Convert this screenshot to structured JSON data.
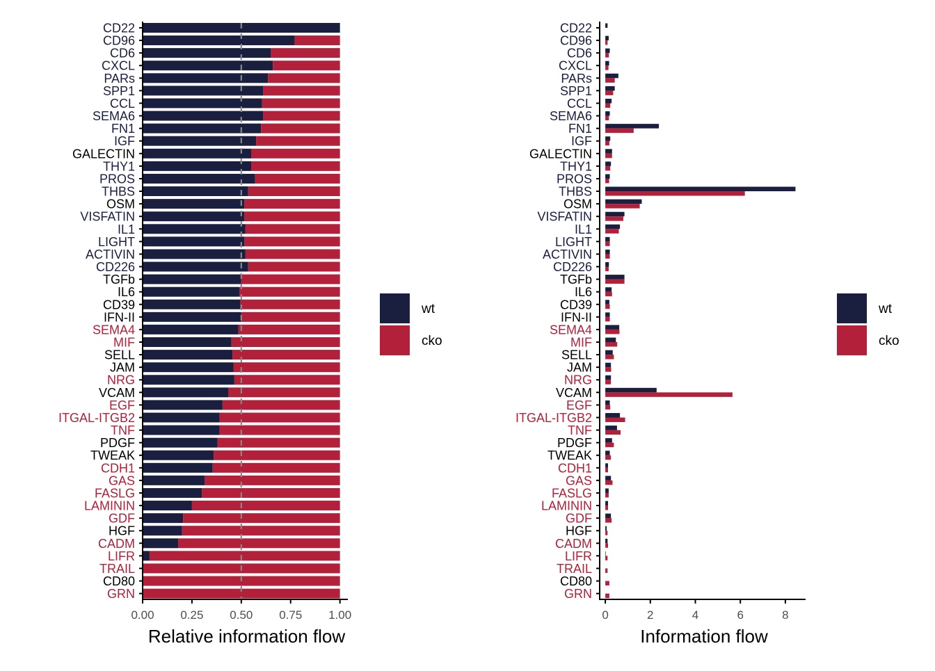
{
  "colors": {
    "wt": "#1a1f3f",
    "cko": "#b2203a",
    "neutral_label": "#000000",
    "axis": "#000000",
    "tick_text": "#4d4d4d",
    "ref_line": "#888888"
  },
  "chart_data": [
    {
      "type": "bar",
      "orientation": "horizontal",
      "stacked": true,
      "xlabel": "Relative information flow",
      "xlim": [
        0,
        1.04
      ],
      "xticks": [
        "0.00",
        "0.25",
        "0.50",
        "0.75",
        "1.00"
      ],
      "reference_line": 0.5,
      "legend": {
        "placement": "right",
        "entries": [
          "wt",
          "cko"
        ]
      },
      "categories": [
        "CD22",
        "CD96",
        "CD6",
        "CXCL",
        "PARs",
        "SPP1",
        "CCL",
        "SEMA6",
        "FN1",
        "IGF",
        "GALECTIN",
        "THY1",
        "PROS",
        "THBS",
        "OSM",
        "VISFATIN",
        "IL1",
        "LIGHT",
        "ACTIVIN",
        "CD226",
        "TGFb",
        "IL6",
        "CD39",
        "IFN-II",
        "SEMA4",
        "MIF",
        "SELL",
        "JAM",
        "NRG",
        "VCAM",
        "EGF",
        "ITGAL-ITGB2",
        "TNF",
        "PDGF",
        "TWEAK",
        "CDH1",
        "GAS",
        "FASLG",
        "LAMININ",
        "GDF",
        "HGF",
        "CADM",
        "LIFR",
        "TRAIL",
        "CD80",
        "GRN"
      ],
      "label_group": [
        "wt",
        "wt",
        "wt",
        "wt",
        "wt",
        "wt",
        "wt",
        "wt",
        "wt",
        "wt",
        "none",
        "wt",
        "wt",
        "wt",
        "none",
        "wt",
        "wt",
        "wt",
        "wt",
        "wt",
        "none",
        "none",
        "none",
        "none",
        "cko",
        "cko",
        "none",
        "none",
        "cko",
        "none",
        "cko",
        "cko",
        "cko",
        "none",
        "none",
        "cko",
        "cko",
        "cko",
        "cko",
        "cko",
        "none",
        "cko",
        "cko",
        "cko",
        "none",
        "cko"
      ],
      "series": [
        {
          "name": "wt",
          "values": [
            1.0,
            0.77,
            0.65,
            0.66,
            0.635,
            0.61,
            0.605,
            0.61,
            0.6,
            0.575,
            0.55,
            0.55,
            0.57,
            0.535,
            0.515,
            0.515,
            0.52,
            0.515,
            0.52,
            0.535,
            0.5,
            0.49,
            0.495,
            0.5,
            0.485,
            0.45,
            0.455,
            0.46,
            0.465,
            0.435,
            0.405,
            0.39,
            0.39,
            0.38,
            0.36,
            0.355,
            0.315,
            0.3,
            0.25,
            0.205,
            0.2,
            0.18,
            0.035,
            0.0,
            0.0,
            0.0
          ]
        },
        {
          "name": "cko",
          "values": [
            0.0,
            0.23,
            0.35,
            0.34,
            0.365,
            0.39,
            0.395,
            0.39,
            0.4,
            0.425,
            0.45,
            0.45,
            0.43,
            0.465,
            0.485,
            0.485,
            0.48,
            0.485,
            0.48,
            0.465,
            0.5,
            0.51,
            0.505,
            0.5,
            0.515,
            0.55,
            0.545,
            0.54,
            0.535,
            0.565,
            0.595,
            0.61,
            0.61,
            0.62,
            0.64,
            0.645,
            0.685,
            0.7,
            0.75,
            0.795,
            0.8,
            0.82,
            0.965,
            1.0,
            1.0,
            1.0
          ]
        }
      ]
    },
    {
      "type": "bar",
      "orientation": "horizontal",
      "stacked": false,
      "xlabel": "Information flow",
      "xlim": [
        -0.25,
        8.9
      ],
      "xticks": [
        "0",
        "2",
        "4",
        "6",
        "8"
      ],
      "legend": {
        "placement": "right",
        "entries": [
          "wt",
          "cko"
        ]
      },
      "categories": [
        "CD22",
        "CD96",
        "CD6",
        "CXCL",
        "PARs",
        "SPP1",
        "CCL",
        "SEMA6",
        "FN1",
        "IGF",
        "GALECTIN",
        "THY1",
        "PROS",
        "THBS",
        "OSM",
        "VISFATIN",
        "IL1",
        "LIGHT",
        "ACTIVIN",
        "CD226",
        "TGFb",
        "IL6",
        "CD39",
        "IFN-II",
        "SEMA4",
        "MIF",
        "SELL",
        "JAM",
        "NRG",
        "VCAM",
        "EGF",
        "ITGAL-ITGB2",
        "TNF",
        "PDGF",
        "TWEAK",
        "CDH1",
        "GAS",
        "FASLG",
        "LAMININ",
        "GDF",
        "HGF",
        "CADM",
        "LIFR",
        "TRAIL",
        "CD80",
        "GRN"
      ],
      "label_group": [
        "wt",
        "wt",
        "wt",
        "wt",
        "wt",
        "wt",
        "wt",
        "wt",
        "wt",
        "wt",
        "none",
        "wt",
        "wt",
        "wt",
        "none",
        "wt",
        "wt",
        "wt",
        "wt",
        "wt",
        "none",
        "none",
        "none",
        "none",
        "cko",
        "cko",
        "none",
        "none",
        "cko",
        "none",
        "cko",
        "cko",
        "cko",
        "none",
        "none",
        "cko",
        "cko",
        "cko",
        "cko",
        "cko",
        "none",
        "cko",
        "cko",
        "cko",
        "none",
        "cko"
      ],
      "series": [
        {
          "name": "wt",
          "values": [
            0.1,
            0.15,
            0.2,
            0.17,
            0.58,
            0.42,
            0.28,
            0.2,
            2.38,
            0.22,
            0.3,
            0.25,
            0.2,
            8.45,
            1.62,
            0.85,
            0.65,
            0.2,
            0.2,
            0.16,
            0.85,
            0.28,
            0.18,
            0.2,
            0.62,
            0.47,
            0.33,
            0.25,
            0.25,
            2.28,
            0.2,
            0.65,
            0.52,
            0.3,
            0.2,
            0.12,
            0.25,
            0.15,
            0.12,
            0.25,
            0.06,
            0.1,
            0.02,
            0.0,
            0.0,
            0.0
          ]
        },
        {
          "name": "cko",
          "values": [
            0.0,
            0.1,
            0.16,
            0.14,
            0.42,
            0.35,
            0.22,
            0.16,
            1.26,
            0.18,
            0.3,
            0.22,
            0.17,
            6.2,
            1.53,
            0.8,
            0.6,
            0.2,
            0.2,
            0.15,
            0.85,
            0.3,
            0.2,
            0.2,
            0.63,
            0.53,
            0.38,
            0.26,
            0.25,
            5.65,
            0.22,
            0.88,
            0.68,
            0.38,
            0.25,
            0.12,
            0.32,
            0.15,
            0.12,
            0.28,
            0.1,
            0.12,
            0.1,
            0.1,
            0.18,
            0.18
          ]
        }
      ]
    }
  ]
}
